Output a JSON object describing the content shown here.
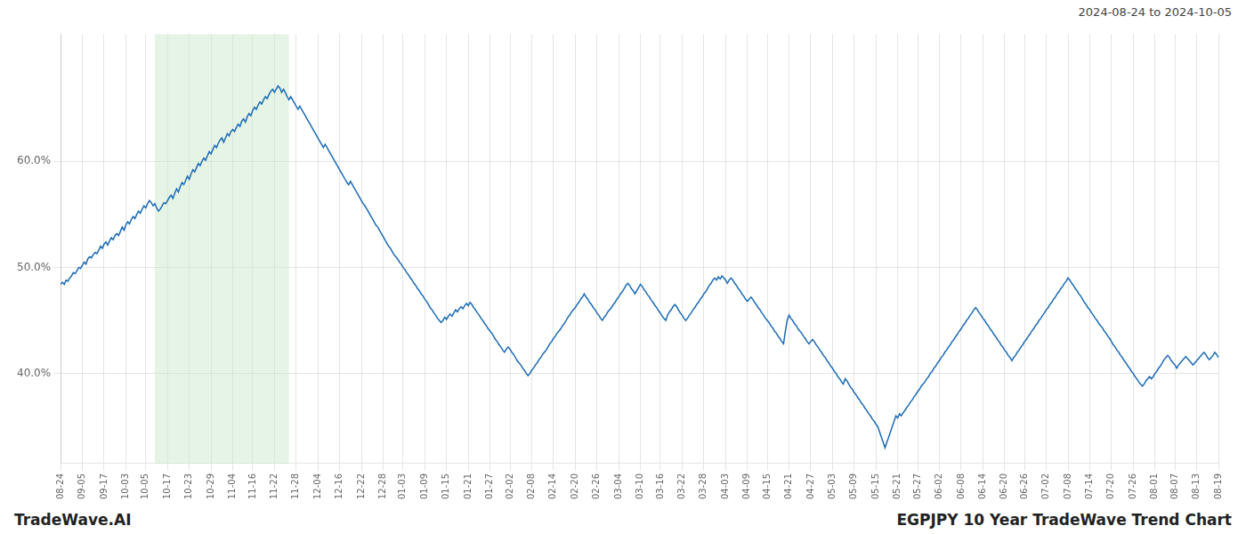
{
  "chart_data": {
    "type": "line",
    "title": "EGPJPY 10 Year TradeWave Trend Chart",
    "subtitle": "2024-08-24 to 2024-10-05",
    "annotations": [
      "TradeWave.AI"
    ],
    "color": "#1a6bb5",
    "grid": true,
    "highlight": {
      "start": 52,
      "end": 126,
      "color": "#c8e6c8"
    },
    "ylim": [
      0.315,
      0.72
    ],
    "yticks": [
      {
        "value": 0.4,
        "label": "40.0%"
      },
      {
        "value": 0.5,
        "label": "50.0%"
      },
      {
        "value": 0.6,
        "label": "60.0%"
      }
    ],
    "categories": [
      "08-24",
      null,
      null,
      null,
      null,
      null,
      null,
      null,
      null,
      null,
      null,
      null,
      "09-05",
      null,
      null,
      null,
      null,
      null,
      null,
      null,
      null,
      null,
      null,
      null,
      "09-17",
      null,
      null,
      null,
      null,
      null,
      null,
      null,
      null,
      null,
      null,
      null,
      "10-03",
      null,
      null,
      null,
      null,
      null,
      null,
      null,
      null,
      null,
      null,
      "10-05",
      null,
      null,
      null,
      null,
      null,
      null,
      null,
      null,
      null,
      null,
      null,
      "10-17",
      null,
      null,
      null,
      null,
      null,
      null,
      null,
      null,
      null,
      null,
      null,
      "10-23",
      null,
      null,
      null,
      null,
      null,
      null,
      null,
      null,
      null,
      null,
      null,
      "10-29",
      null,
      null,
      null,
      null,
      null,
      null,
      null,
      null,
      null,
      null,
      null,
      "11-04",
      null,
      null,
      null,
      null,
      null,
      null,
      null,
      null,
      null,
      null,
      "11-16",
      null,
      null,
      null,
      null,
      null,
      null,
      null,
      null,
      null,
      null,
      null,
      "11-22",
      null,
      null,
      null,
      null,
      null,
      null,
      null,
      null,
      null,
      null,
      null,
      "11-28",
      null,
      null,
      null,
      null,
      null,
      null,
      null,
      null,
      null,
      null,
      null,
      "12-04",
      null,
      null,
      null,
      null,
      null,
      null,
      null,
      null,
      null,
      null,
      null,
      "12-16",
      null,
      null,
      null,
      null,
      null,
      null,
      null,
      null,
      null,
      null,
      null,
      "12-22",
      null,
      null,
      null,
      null,
      null,
      null,
      null,
      null,
      null,
      null,
      null,
      "12-28",
      null,
      null,
      null,
      null,
      null,
      null,
      null,
      null,
      null,
      null,
      "01-03",
      null,
      null,
      null,
      null,
      null,
      null,
      null,
      null,
      null,
      null,
      null,
      "01-09",
      null,
      null,
      null,
      null,
      null,
      null,
      null,
      null,
      null,
      null,
      null,
      "01-15",
      null,
      null,
      null,
      null,
      null,
      null,
      null,
      null,
      null,
      null,
      null,
      "01-21",
      null,
      null,
      null,
      null,
      null,
      null,
      null,
      null,
      null,
      null,
      null,
      "01-27",
      null,
      null,
      null,
      null,
      null,
      null,
      null,
      null,
      null,
      null,
      "02-02",
      null,
      null,
      null,
      null,
      null,
      null,
      null,
      null,
      null,
      null,
      null,
      "02-08",
      null,
      null,
      null,
      null,
      null,
      null,
      null,
      null,
      null,
      null,
      null,
      "02-14",
      null,
      null,
      null,
      null,
      null,
      null,
      null,
      null,
      null,
      null,
      null,
      "02-20",
      null,
      null,
      null,
      null,
      null,
      null,
      null,
      null,
      null,
      null,
      null,
      "02-26",
      null,
      null,
      null,
      null,
      null,
      null,
      null,
      null,
      null,
      null,
      null,
      "03-04",
      null,
      null,
      null,
      null,
      null,
      null,
      null,
      null,
      null,
      null,
      null,
      "03-10",
      null,
      null,
      null,
      null,
      null,
      null,
      null,
      null,
      null,
      null,
      "03-16",
      null,
      null,
      null,
      null,
      null,
      null,
      null,
      null,
      null,
      null,
      null,
      "03-22",
      null,
      null,
      null,
      null,
      null,
      null,
      null,
      null,
      null,
      null,
      null,
      "03-28",
      null,
      null,
      null,
      null,
      null,
      null,
      null,
      null,
      null,
      null,
      null,
      "04-03",
      null,
      null,
      null,
      null,
      null,
      null,
      null,
      null,
      null,
      null,
      null,
      "04-09",
      null,
      null,
      null,
      null,
      null,
      null,
      null,
      null,
      null,
      null,
      "04-15",
      null,
      null,
      null,
      null,
      null,
      null,
      null,
      null,
      null,
      null,
      null,
      "04-21",
      null,
      null,
      null,
      null,
      null,
      null,
      null,
      null,
      null,
      null,
      null,
      "04-27",
      null,
      null,
      null,
      null,
      null,
      null,
      null,
      null,
      null,
      null,
      null,
      "05-03",
      null,
      null,
      null,
      null,
      null,
      null,
      null,
      null,
      null,
      null,
      null,
      "05-09",
      null,
      null,
      null,
      null,
      null,
      null,
      null,
      null,
      null,
      null,
      null,
      "05-15",
      null,
      null,
      null,
      null,
      null,
      null,
      null,
      null,
      null,
      null,
      null,
      "05-21",
      null,
      null,
      null,
      null,
      null,
      null,
      null,
      null,
      null,
      null,
      "05-27",
      null,
      null,
      null,
      null,
      null,
      null,
      null,
      null,
      null,
      null,
      null,
      "06-02",
      null,
      null,
      null,
      null,
      null,
      null,
      null,
      null,
      null,
      null,
      null,
      "06-08",
      null,
      null,
      null,
      null,
      null,
      null,
      null,
      null,
      null,
      null,
      null,
      "06-14",
      null,
      null,
      null,
      null,
      null,
      null,
      null,
      null,
      null,
      null,
      null,
      "06-20",
      null,
      null,
      null,
      null,
      null,
      null,
      null,
      null,
      null,
      null,
      "06-26",
      null,
      null,
      null,
      null,
      null,
      null,
      null,
      null,
      null,
      null,
      null,
      "07-02",
      null,
      null,
      null,
      null,
      null,
      null,
      null,
      null,
      null,
      null,
      null,
      "07-08",
      null,
      null,
      null,
      null,
      null,
      null,
      null,
      null,
      null,
      null,
      null,
      "07-14",
      null,
      null,
      null,
      null,
      null,
      null,
      null,
      null,
      null,
      null,
      null,
      "07-20",
      null,
      null,
      null,
      null,
      null,
      null,
      null,
      null,
      null,
      null,
      null,
      "07-26",
      null,
      null,
      null,
      null,
      null,
      null,
      null,
      null,
      null,
      null,
      null,
      "08-01",
      null,
      null,
      null,
      null,
      null,
      null,
      null,
      null,
      null,
      null,
      "08-07",
      null,
      null,
      null,
      null,
      null,
      null,
      null,
      null,
      null,
      null,
      null,
      "08-13",
      null,
      null,
      null,
      null,
      null,
      null,
      null,
      null,
      null,
      null,
      null,
      "08-19"
    ],
    "values": [
      0.484,
      0.486,
      0.484,
      0.488,
      0.487,
      0.49,
      0.492,
      0.495,
      0.494,
      0.497,
      0.5,
      0.499,
      0.502,
      0.505,
      0.503,
      0.508,
      0.51,
      0.509,
      0.512,
      0.514,
      0.513,
      0.516,
      0.52,
      0.518,
      0.522,
      0.524,
      0.521,
      0.525,
      0.528,
      0.526,
      0.53,
      0.532,
      0.53,
      0.534,
      0.538,
      0.535,
      0.54,
      0.543,
      0.541,
      0.545,
      0.548,
      0.546,
      0.55,
      0.553,
      0.551,
      0.555,
      0.558,
      0.556,
      0.56,
      0.563,
      0.561,
      0.558,
      0.56,
      0.556,
      0.553,
      0.555,
      0.558,
      0.561,
      0.56,
      0.563,
      0.566,
      0.568,
      0.565,
      0.57,
      0.574,
      0.571,
      0.576,
      0.58,
      0.578,
      0.582,
      0.586,
      0.583,
      0.588,
      0.592,
      0.59,
      0.594,
      0.598,
      0.596,
      0.6,
      0.603,
      0.601,
      0.605,
      0.609,
      0.607,
      0.611,
      0.615,
      0.613,
      0.617,
      0.62,
      0.622,
      0.618,
      0.622,
      0.626,
      0.624,
      0.628,
      0.63,
      0.628,
      0.632,
      0.635,
      0.633,
      0.638,
      0.64,
      0.637,
      0.642,
      0.645,
      0.643,
      0.648,
      0.651,
      0.649,
      0.653,
      0.656,
      0.654,
      0.658,
      0.661,
      0.659,
      0.663,
      0.666,
      0.668,
      0.665,
      0.668,
      0.671,
      0.669,
      0.665,
      0.668,
      0.665,
      0.661,
      0.658,
      0.661,
      0.658,
      0.655,
      0.652,
      0.649,
      0.652,
      0.649,
      0.646,
      0.643,
      0.64,
      0.637,
      0.634,
      0.631,
      0.628,
      0.625,
      0.622,
      0.619,
      0.616,
      0.613,
      0.616,
      0.613,
      0.61,
      0.607,
      0.604,
      0.601,
      0.598,
      0.595,
      0.592,
      0.589,
      0.586,
      0.583,
      0.58,
      0.578,
      0.581,
      0.578,
      0.575,
      0.572,
      0.569,
      0.566,
      0.563,
      0.56,
      0.558,
      0.555,
      0.552,
      0.549,
      0.546,
      0.543,
      0.54,
      0.538,
      0.535,
      0.532,
      0.529,
      0.526,
      0.523,
      0.52,
      0.518,
      0.515,
      0.512,
      0.51,
      0.508,
      0.505,
      0.503,
      0.5,
      0.498,
      0.495,
      0.493,
      0.49,
      0.488,
      0.485,
      0.483,
      0.48,
      0.478,
      0.475,
      0.473,
      0.47,
      0.468,
      0.465,
      0.462,
      0.46,
      0.457,
      0.455,
      0.452,
      0.45,
      0.448,
      0.45,
      0.453,
      0.451,
      0.454,
      0.456,
      0.454,
      0.457,
      0.46,
      0.458,
      0.461,
      0.463,
      0.461,
      0.464,
      0.466,
      0.464,
      0.467,
      0.465,
      0.462,
      0.46,
      0.457,
      0.455,
      0.452,
      0.45,
      0.447,
      0.445,
      0.442,
      0.44,
      0.438,
      0.435,
      0.432,
      0.43,
      0.427,
      0.425,
      0.422,
      0.42,
      0.423,
      0.425,
      0.423,
      0.42,
      0.418,
      0.415,
      0.412,
      0.41,
      0.408,
      0.405,
      0.403,
      0.4,
      0.398,
      0.4,
      0.403,
      0.405,
      0.408,
      0.41,
      0.413,
      0.415,
      0.418,
      0.42,
      0.422,
      0.425,
      0.428,
      0.43,
      0.433,
      0.435,
      0.438,
      0.44,
      0.442,
      0.445,
      0.447,
      0.45,
      0.453,
      0.455,
      0.458,
      0.46,
      0.462,
      0.465,
      0.467,
      0.47,
      0.472,
      0.475,
      0.472,
      0.47,
      0.467,
      0.465,
      0.462,
      0.46,
      0.457,
      0.455,
      0.452,
      0.45,
      0.453,
      0.455,
      0.458,
      0.46,
      0.462,
      0.465,
      0.467,
      0.47,
      0.472,
      0.475,
      0.477,
      0.48,
      0.483,
      0.485,
      0.483,
      0.48,
      0.478,
      0.475,
      0.478,
      0.481,
      0.484,
      0.482,
      0.479,
      0.477,
      0.474,
      0.472,
      0.469,
      0.467,
      0.464,
      0.462,
      0.459,
      0.457,
      0.454,
      0.452,
      0.45,
      0.455,
      0.458,
      0.46,
      0.463,
      0.465,
      0.463,
      0.46,
      0.457,
      0.455,
      0.452,
      0.45,
      0.452,
      0.455,
      0.457,
      0.46,
      0.462,
      0.465,
      0.467,
      0.47,
      0.472,
      0.475,
      0.477,
      0.48,
      0.483,
      0.485,
      0.488,
      0.49,
      0.488,
      0.491,
      0.489,
      0.492,
      0.49,
      0.488,
      0.485,
      0.488,
      0.49,
      0.488,
      0.485,
      0.483,
      0.48,
      0.478,
      0.475,
      0.473,
      0.47,
      0.468,
      0.47,
      0.472,
      0.47,
      0.467,
      0.465,
      0.462,
      0.46,
      0.457,
      0.455,
      0.452,
      0.45,
      0.448,
      0.445,
      0.443,
      0.44,
      0.438,
      0.435,
      0.433,
      0.43,
      0.428,
      0.44,
      0.45,
      0.455,
      0.452,
      0.45,
      0.447,
      0.445,
      0.442,
      0.44,
      0.438,
      0.435,
      0.433,
      0.43,
      0.428,
      0.43,
      0.432,
      0.43,
      0.427,
      0.425,
      0.422,
      0.42,
      0.417,
      0.415,
      0.412,
      0.41,
      0.407,
      0.405,
      0.402,
      0.4,
      0.397,
      0.395,
      0.392,
      0.39,
      0.395,
      0.393,
      0.39,
      0.387,
      0.385,
      0.382,
      0.38,
      0.377,
      0.375,
      0.372,
      0.37,
      0.367,
      0.365,
      0.362,
      0.36,
      0.357,
      0.355,
      0.352,
      0.35,
      0.345,
      0.34,
      0.335,
      0.33,
      0.335,
      0.34,
      0.345,
      0.35,
      0.355,
      0.36,
      0.358,
      0.362,
      0.36,
      0.363,
      0.365,
      0.368,
      0.37,
      0.373,
      0.375,
      0.378,
      0.38,
      0.383,
      0.385,
      0.388,
      0.39,
      0.392,
      0.395,
      0.397,
      0.4,
      0.402,
      0.405,
      0.407,
      0.41,
      0.412,
      0.415,
      0.417,
      0.42,
      0.422,
      0.425,
      0.427,
      0.43,
      0.432,
      0.435,
      0.437,
      0.44,
      0.442,
      0.445,
      0.447,
      0.45,
      0.452,
      0.455,
      0.457,
      0.46,
      0.462,
      0.46,
      0.457,
      0.455,
      0.452,
      0.45,
      0.447,
      0.445,
      0.442,
      0.44,
      0.437,
      0.435,
      0.432,
      0.43,
      0.427,
      0.425,
      0.422,
      0.42,
      0.417,
      0.415,
      0.412,
      0.415,
      0.417,
      0.42,
      0.422,
      0.425,
      0.427,
      0.43,
      0.432,
      0.435,
      0.437,
      0.44,
      0.442,
      0.445,
      0.447,
      0.45,
      0.452,
      0.455,
      0.457,
      0.46,
      0.462,
      0.465,
      0.467,
      0.47,
      0.472,
      0.475,
      0.477,
      0.48,
      0.482,
      0.485,
      0.487,
      0.49,
      0.488,
      0.485,
      0.483,
      0.48,
      0.478,
      0.475,
      0.473,
      0.47,
      0.467,
      0.465,
      0.462,
      0.46,
      0.457,
      0.455,
      0.452,
      0.45,
      0.447,
      0.445,
      0.443,
      0.44,
      0.438,
      0.435,
      0.433,
      0.43,
      0.427,
      0.425,
      0.422,
      0.42,
      0.417,
      0.415,
      0.412,
      0.41,
      0.407,
      0.405,
      0.402,
      0.4,
      0.397,
      0.395,
      0.392,
      0.39,
      0.388,
      0.39,
      0.393,
      0.395,
      0.397,
      0.395,
      0.397,
      0.4,
      0.402,
      0.405,
      0.407,
      0.41,
      0.413,
      0.415,
      0.417,
      0.415,
      0.412,
      0.41,
      0.408,
      0.405,
      0.408,
      0.41,
      0.412,
      0.414,
      0.416,
      0.414,
      0.412,
      0.41,
      0.408,
      0.41,
      0.412,
      0.414,
      0.416,
      0.418,
      0.42,
      0.418,
      0.415,
      0.413,
      0.415,
      0.417,
      0.42,
      0.418,
      0.415
    ]
  }
}
